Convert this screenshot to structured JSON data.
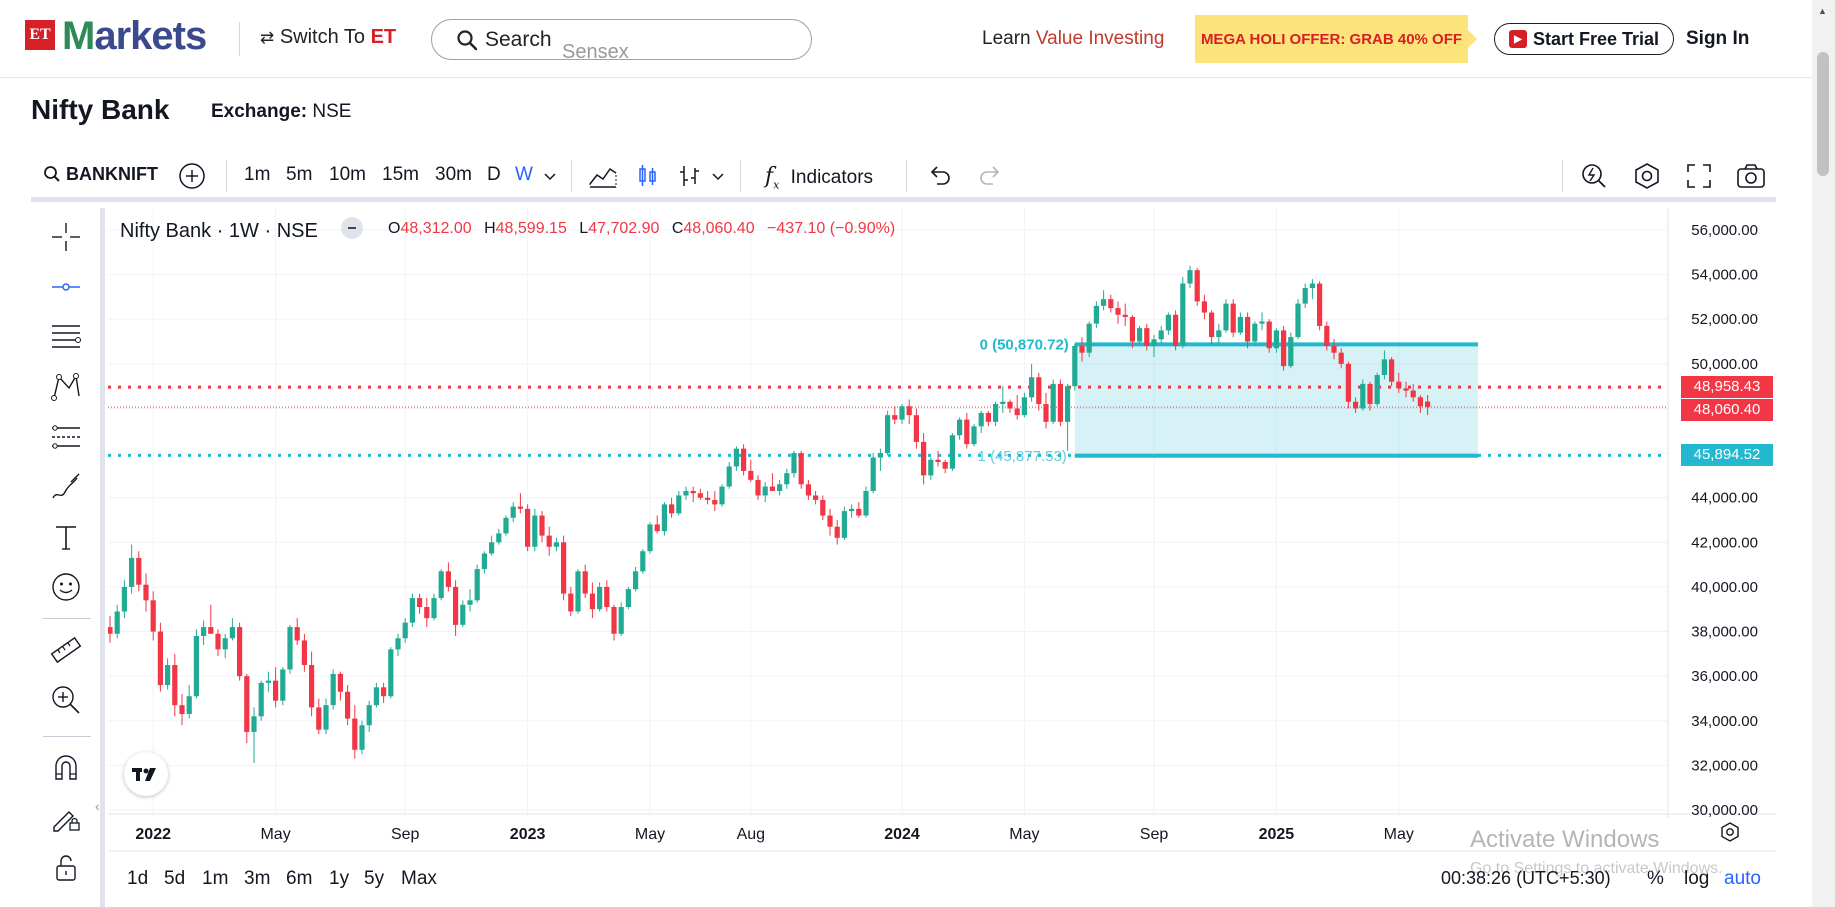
{
  "nav": {
    "logo_et": "ET",
    "logo_markets_1": "M",
    "logo_markets_2": "arkets",
    "switch_prefix": "Switch To ",
    "switch_brand": "ET",
    "search_label": "Search",
    "search_placeholder": "Sensex",
    "learn_prefix": "Learn ",
    "learn_highlight": "Value Investing",
    "offer": "MEGA HOLI OFFER: GRAB 40% OFF",
    "trial": "Start Free Trial",
    "signin": "Sign In"
  },
  "page": {
    "title": "Nifty Bank",
    "exchange_label": "Exchange:",
    "exchange_value": "NSE"
  },
  "toolbar": {
    "symbol": "BANKNIFT",
    "intervals": [
      "1m",
      "5m",
      "10m",
      "15m",
      "30m",
      "D",
      "W"
    ],
    "active_interval": "W",
    "indicators": "Indicators"
  },
  "legend": {
    "title": "Nifty Bank · 1W · NSE",
    "o_label": "O",
    "o": "48,312.00",
    "h_label": "H",
    "h": "48,599.15",
    "l_label": "L",
    "l": "47,702.90",
    "c_label": "C",
    "c": "48,060.40",
    "change": "−437.10 (−0.90%)"
  },
  "price_tags": {
    "red_line": "48,958.43",
    "last": "48,060.40",
    "teal_line": "45,894.52"
  },
  "rect_labels": {
    "top": "0 (50,870.72)",
    "bottom": "1 (45,877.53)"
  },
  "bottom": {
    "ranges": [
      "1d",
      "5d",
      "1m",
      "3m",
      "6m",
      "1y",
      "5y",
      "Max"
    ],
    "clock": "00:38:26 (UTC+5:30)",
    "percent": "%",
    "log": "log",
    "auto": "auto"
  },
  "watermark": {
    "line1": "Activate Windows",
    "line2": "Go to Settings to activate Windows."
  },
  "colors": {
    "up": "#22ab94",
    "down": "#f23645",
    "teal": "#22b8cf",
    "active": "#2962ff"
  },
  "chart_data": {
    "type": "candlestick",
    "title": "Nifty Bank · 1W · NSE",
    "ylim": [
      30000,
      56000
    ],
    "y_ticks": [
      30000,
      32000,
      34000,
      36000,
      38000,
      40000,
      42000,
      44000,
      46000,
      48000,
      50000,
      52000,
      54000,
      56000
    ],
    "y_tick_labels": [
      "30,000.00",
      "32,000.00",
      "34,000.00",
      "36,000.00",
      "38,000.00",
      "40,000.00",
      "42,000.00",
      "44,000.00",
      "46,000.00",
      "48,000.00",
      "50,000.00",
      "52,000.00",
      "54,000.00",
      "56,000.00"
    ],
    "x_labels": [
      "2022",
      "May",
      "Sep",
      "2023",
      "May",
      "Aug",
      "2024",
      "May",
      "Sep",
      "2025",
      "May"
    ],
    "x_label_bold": [
      true,
      false,
      false,
      true,
      false,
      false,
      true,
      false,
      false,
      true,
      false
    ],
    "x_label_index": [
      6,
      23,
      41,
      58,
      75,
      89,
      110,
      127,
      145,
      162,
      179
    ],
    "horizontal_lines": [
      {
        "price": 48958.43,
        "style": "dotted",
        "color": "#f23645"
      },
      {
        "price": 45894.52,
        "style": "dotted",
        "color": "#22b8cf"
      },
      {
        "price": 48060.4,
        "style": "thin-dotted",
        "color": "#f23645"
      }
    ],
    "rectangle": {
      "top": 50870.72,
      "bottom": 45877.53,
      "start_index": 134,
      "end_index": 190
    },
    "candles": [
      [
        38200,
        38700,
        37500,
        37900
      ],
      [
        37900,
        39200,
        37700,
        38900
      ],
      [
        38900,
        40300,
        38600,
        40000
      ],
      [
        40000,
        41900,
        39700,
        41300
      ],
      [
        41300,
        41600,
        39800,
        40100
      ],
      [
        40100,
        40600,
        38900,
        39400
      ],
      [
        39400,
        39800,
        37600,
        38000
      ],
      [
        38000,
        38400,
        35300,
        35600
      ],
      [
        35600,
        36800,
        35400,
        36500
      ],
      [
        36500,
        37000,
        34200,
        34700
      ],
      [
        34700,
        35200,
        33800,
        34300
      ],
      [
        34300,
        35600,
        34100,
        35100
      ],
      [
        35100,
        38100,
        35000,
        37800
      ],
      [
        37800,
        38500,
        37400,
        38200
      ],
      [
        38200,
        39200,
        37900,
        37900
      ],
      [
        37900,
        38100,
        36900,
        37200
      ],
      [
        37200,
        37900,
        36800,
        37700
      ],
      [
        37700,
        38600,
        37600,
        38200
      ],
      [
        38200,
        38400,
        35800,
        36000
      ],
      [
        36000,
        36100,
        33000,
        33500
      ],
      [
        33500,
        34600,
        32100,
        34200
      ],
      [
        34200,
        35800,
        34000,
        35700
      ],
      [
        35700,
        36200,
        35300,
        35800
      ],
      [
        35800,
        36400,
        34600,
        34900
      ],
      [
        34900,
        36400,
        34700,
        36300
      ],
      [
        36300,
        38300,
        36100,
        38200
      ],
      [
        38200,
        38600,
        37400,
        37600
      ],
      [
        37600,
        37900,
        36200,
        36500
      ],
      [
        36500,
        37100,
        34200,
        34600
      ],
      [
        34600,
        35000,
        33400,
        33600
      ],
      [
        33600,
        35000,
        33400,
        34700
      ],
      [
        34700,
        36300,
        34500,
        36100
      ],
      [
        36100,
        36200,
        34900,
        35300
      ],
      [
        35300,
        35600,
        33800,
        34100
      ],
      [
        34100,
        34700,
        32300,
        32700
      ],
      [
        32700,
        34000,
        32500,
        33800
      ],
      [
        33800,
        34900,
        33500,
        34700
      ],
      [
        34700,
        35700,
        34600,
        35500
      ],
      [
        35500,
        35700,
        34800,
        35100
      ],
      [
        35100,
        37300,
        35000,
        37200
      ],
      [
        37200,
        37900,
        36900,
        37700
      ],
      [
        37700,
        38600,
        37500,
        38400
      ],
      [
        38400,
        39700,
        38200,
        39500
      ],
      [
        39500,
        39700,
        38800,
        39100
      ],
      [
        39100,
        39500,
        38200,
        38600
      ],
      [
        38600,
        39700,
        38500,
        39500
      ],
      [
        39500,
        40800,
        39400,
        40700
      ],
      [
        40700,
        41100,
        39800,
        40000
      ],
      [
        40000,
        40300,
        37800,
        38300
      ],
      [
        38300,
        39400,
        38200,
        39200
      ],
      [
        39200,
        39900,
        38900,
        39400
      ],
      [
        39400,
        41000,
        39300,
        40800
      ],
      [
        40800,
        41600,
        40600,
        41500
      ],
      [
        41500,
        42300,
        41400,
        42000
      ],
      [
        42000,
        42600,
        41900,
        42400
      ],
      [
        42400,
        43200,
        42300,
        43100
      ],
      [
        43100,
        43800,
        42900,
        43600
      ],
      [
        43600,
        44200,
        43300,
        43500
      ],
      [
        43500,
        43700,
        41600,
        41800
      ],
      [
        41800,
        43500,
        41600,
        43200
      ],
      [
        43200,
        43400,
        42000,
        42300
      ],
      [
        42300,
        42700,
        41400,
        41800
      ],
      [
        41800,
        42200,
        41600,
        42000
      ],
      [
        42000,
        42300,
        39400,
        39700
      ],
      [
        39700,
        40000,
        38700,
        38900
      ],
      [
        38900,
        40800,
        38800,
        40700
      ],
      [
        40700,
        41000,
        39500,
        39700
      ],
      [
        39700,
        40200,
        38600,
        39000
      ],
      [
        39000,
        40200,
        38900,
        40000
      ],
      [
        40000,
        40300,
        38900,
        39100
      ],
      [
        39100,
        39200,
        37600,
        37900
      ],
      [
        37900,
        39300,
        37800,
        39100
      ],
      [
        39100,
        40000,
        39000,
        39900
      ],
      [
        39900,
        40900,
        39800,
        40700
      ],
      [
        40700,
        41700,
        40600,
        41600
      ],
      [
        41600,
        42900,
        41500,
        42800
      ],
      [
        42800,
        43200,
        42400,
        42500
      ],
      [
        42500,
        43800,
        42300,
        43700
      ],
      [
        43700,
        44000,
        43100,
        43300
      ],
      [
        43300,
        44300,
        43200,
        44100
      ],
      [
        44100,
        44500,
        43900,
        44300
      ],
      [
        44300,
        44500,
        43800,
        44200
      ],
      [
        44200,
        44400,
        43900,
        44000
      ],
      [
        44000,
        44300,
        43700,
        43900
      ],
      [
        43900,
        44300,
        43400,
        43700
      ],
      [
        43700,
        44600,
        43600,
        44500
      ],
      [
        44500,
        45600,
        44400,
        45400
      ],
      [
        45400,
        46300,
        45200,
        46200
      ],
      [
        46200,
        46400,
        45000,
        45200
      ],
      [
        45200,
        45700,
        44700,
        44800
      ],
      [
        44800,
        45000,
        43900,
        44100
      ],
      [
        44100,
        44700,
        43800,
        44500
      ],
      [
        44500,
        45100,
        44300,
        44300
      ],
      [
        44300,
        44800,
        44100,
        44600
      ],
      [
        44600,
        45300,
        44400,
        45100
      ],
      [
        45100,
        46100,
        44900,
        46000
      ],
      [
        46000,
        46100,
        44400,
        44600
      ],
      [
        44600,
        44800,
        43900,
        44100
      ],
      [
        44100,
        44300,
        43700,
        43900
      ],
      [
        43900,
        44100,
        43000,
        43200
      ],
      [
        43200,
        43500,
        42300,
        42700
      ],
      [
        42700,
        43000,
        41900,
        42200
      ],
      [
        42200,
        43600,
        42100,
        43400
      ],
      [
        43400,
        43700,
        43100,
        43500
      ],
      [
        43500,
        43800,
        43100,
        43200
      ],
      [
        43200,
        44500,
        43100,
        44300
      ],
      [
        44300,
        46000,
        44200,
        45800
      ],
      [
        45800,
        46200,
        45200,
        46000
      ],
      [
        46000,
        47900,
        45900,
        47700
      ],
      [
        47700,
        48100,
        47300,
        47500
      ],
      [
        47500,
        48200,
        47300,
        48100
      ],
      [
        48100,
        48400,
        47300,
        47700
      ],
      [
        47700,
        48000,
        46200,
        46500
      ],
      [
        46500,
        46900,
        44600,
        45000
      ],
      [
        45000,
        45800,
        44800,
        45700
      ],
      [
        45700,
        46100,
        45400,
        45600
      ],
      [
        45600,
        45700,
        45100,
        45300
      ],
      [
        45300,
        46900,
        45200,
        46800
      ],
      [
        46800,
        47600,
        46600,
        47500
      ],
      [
        47500,
        47800,
        46200,
        46400
      ],
      [
        46400,
        47300,
        46300,
        47200
      ],
      [
        47200,
        47900,
        46900,
        47800
      ],
      [
        47800,
        47900,
        47200,
        47400
      ],
      [
        47400,
        48300,
        47200,
        48200
      ],
      [
        48200,
        49000,
        47800,
        48300
      ],
      [
        48300,
        48400,
        47800,
        48000
      ],
      [
        48000,
        48600,
        47500,
        47700
      ],
      [
        47700,
        48700,
        47600,
        48500
      ],
      [
        48500,
        50000,
        48300,
        49400
      ],
      [
        49400,
        49600,
        47900,
        48200
      ],
      [
        48200,
        48700,
        47100,
        47400
      ],
      [
        47400,
        49300,
        47300,
        49100
      ],
      [
        49100,
        49300,
        47200,
        47400
      ],
      [
        47400,
        49100,
        46100,
        49000
      ],
      [
        49000,
        50900,
        48800,
        50800
      ],
      [
        50800,
        51200,
        50100,
        50500
      ],
      [
        50500,
        51900,
        50300,
        51800
      ],
      [
        51800,
        52800,
        51600,
        52600
      ],
      [
        52600,
        53300,
        52400,
        52900
      ],
      [
        52900,
        53100,
        52300,
        52500
      ],
      [
        52500,
        52800,
        51800,
        52200
      ],
      [
        52200,
        52700,
        51700,
        52100
      ],
      [
        52100,
        52200,
        50700,
        51000
      ],
      [
        51000,
        51700,
        50900,
        51600
      ],
      [
        51600,
        51800,
        50600,
        50800
      ],
      [
        50800,
        51300,
        50300,
        51100
      ],
      [
        51100,
        51700,
        50900,
        51500
      ],
      [
        51500,
        52300,
        51300,
        52200
      ],
      [
        52200,
        52400,
        50600,
        50800
      ],
      [
        50800,
        53900,
        50700,
        53600
      ],
      [
        53600,
        54400,
        53400,
        54200
      ],
      [
        54200,
        54300,
        52600,
        52800
      ],
      [
        52800,
        53100,
        52000,
        52300
      ],
      [
        52300,
        52400,
        50900,
        51200
      ],
      [
        51200,
        51800,
        50800,
        51500
      ],
      [
        51500,
        52900,
        51400,
        52700
      ],
      [
        52700,
        52900,
        51200,
        51400
      ],
      [
        51400,
        52300,
        51300,
        52100
      ],
      [
        52100,
        52300,
        50700,
        51000
      ],
      [
        51000,
        51900,
        50800,
        51800
      ],
      [
        51800,
        52300,
        51500,
        51900
      ],
      [
        51900,
        52000,
        50500,
        50700
      ],
      [
        50700,
        51600,
        50500,
        51500
      ],
      [
        51500,
        51700,
        49700,
        49900
      ],
      [
        49900,
        51400,
        49800,
        51200
      ],
      [
        51200,
        52900,
        51100,
        52700
      ],
      [
        52700,
        53600,
        52500,
        53400
      ],
      [
        53400,
        53800,
        52900,
        53600
      ],
      [
        53600,
        53700,
        51500,
        51700
      ],
      [
        51700,
        51900,
        50600,
        50800
      ],
      [
        50800,
        51100,
        50200,
        50500
      ],
      [
        50500,
        50700,
        49800,
        50000
      ],
      [
        50000,
        50100,
        48000,
        48300
      ],
      [
        48300,
        48500,
        47800,
        48000
      ],
      [
        48000,
        49300,
        47900,
        49100
      ],
      [
        49100,
        49200,
        47900,
        48200
      ],
      [
        48200,
        49600,
        48100,
        49500
      ],
      [
        49500,
        50600,
        49300,
        50200
      ],
      [
        50200,
        50300,
        49000,
        49200
      ],
      [
        49200,
        49600,
        48700,
        48900
      ],
      [
        48900,
        49200,
        48500,
        48800
      ],
      [
        48800,
        49100,
        48300,
        48500
      ],
      [
        48500,
        48600,
        47800,
        48100
      ],
      [
        48312,
        48599.15,
        47702.9,
        48060.4
      ]
    ]
  }
}
